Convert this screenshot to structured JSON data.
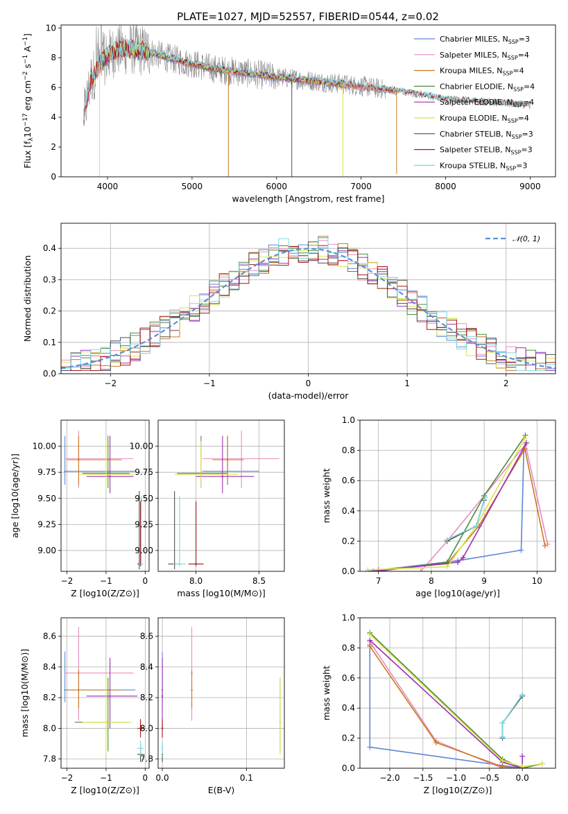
{
  "title": "PLATE=1027, MJD=52557, FIBERID=0544, z=0.02",
  "colors": {
    "Chabrier MILES": "#5b86d6",
    "Salpeter MILES": "#e98bbd",
    "Kroupa MILES": "#c9781f",
    "Chabrier ELODIE": "#4a8a3c",
    "Salpeter ELODIE": "#9b2fb0",
    "Kroupa ELODIE": "#d9e34d",
    "Chabrier STELIB": "#4d4d4d",
    "Salpeter STELIB": "#a01616",
    "Kroupa STELIB": "#7fd7e0",
    "normal": "#5b8fd8",
    "accent_orange": "#e87a2e",
    "accent_lime": "#b6e65a"
  },
  "chart_data": [
    {
      "id": "spectrum",
      "type": "line",
      "xlabel": "wavelength [Angstrom, rest frame]",
      "ylabel_parts": [
        "Flux [f",
        "λ",
        "10",
        "−17",
        " erg cm",
        "−2",
        " s",
        "−1",
        " A",
        "−1",
        "]"
      ],
      "xlim": [
        3450,
        9300
      ],
      "ylim": [
        0,
        10.2
      ],
      "xticks": [
        4000,
        5000,
        6000,
        7000,
        8000,
        9000
      ],
      "yticks": [
        0,
        2,
        4,
        6,
        8,
        10
      ],
      "legend_position": "top-right",
      "legend": [
        {
          "name": "Chabrier MILES",
          "nssp": "3"
        },
        {
          "name": "Salpeter MILES",
          "nssp": "4"
        },
        {
          "name": "Kroupa MILES",
          "nssp": "4"
        },
        {
          "name": "Chabrier ELODIE",
          "nssp": "4"
        },
        {
          "name": "Salpeter ELODIE",
          "nssp": "4"
        },
        {
          "name": "Kroupa ELODIE",
          "nssp": "4"
        },
        {
          "name": "Chabrier STELIB",
          "nssp": "3"
        },
        {
          "name": "Salpeter STELIB",
          "nssp": "3"
        },
        {
          "name": "Kroupa STELIB",
          "nssp": "3"
        }
      ],
      "nssp_label": "N",
      "nssp_sub": "SSP",
      "continuum": {
        "x": [
          3720,
          3800,
          3900,
          4000,
          4100,
          4300,
          4500,
          4700,
          5000,
          5300,
          5600,
          6000,
          6500,
          7000,
          7500,
          8000,
          8500,
          9000
        ],
        "y": [
          4.0,
          6.5,
          7.5,
          8.1,
          8.5,
          8.6,
          8.4,
          8.0,
          7.6,
          7.2,
          7.0,
          6.7,
          6.4,
          6.1,
          5.7,
          5.2,
          5.0,
          4.8
        ]
      },
      "drops": [
        {
          "x": 3905,
          "series": "Kroupa ELODIE",
          "to": 0
        },
        {
          "x": 5430,
          "series": "Kroupa MILES",
          "to": 0
        },
        {
          "x": 6180,
          "series": "Chabrier STELIB",
          "to": 0
        },
        {
          "x": 6785,
          "series": "Kroupa ELODIE",
          "to": 0
        },
        {
          "x": 7420,
          "series": "Kroupa MILES",
          "to": 0.2
        }
      ]
    },
    {
      "id": "residuals",
      "type": "histogram",
      "xlabel": "(data-model)/error",
      "ylabel": "Normed distribution",
      "xlim": [
        -2.5,
        2.5
      ],
      "ylim": [
        0,
        0.48
      ],
      "xticks": [
        -2,
        -1,
        0,
        1,
        2
      ],
      "yticks": [
        0.0,
        0.1,
        0.2,
        0.3,
        0.4
      ],
      "bin_width": 0.1,
      "legend_position": "top-right",
      "normal_label": "𝒩(0, 1)"
    },
    {
      "id": "age_vs_Z",
      "type": "scatter",
      "xlabel": "Z [log10(Z/Z⊙)]",
      "ylabel": "age [log10(age/yr)]",
      "xlim": [
        -2.15,
        0.1
      ],
      "ylim": [
        8.8,
        10.25
      ],
      "xticks": [
        -2,
        -1,
        0
      ],
      "yticks": [
        9.0,
        9.25,
        9.5,
        9.75,
        10.0
      ],
      "points": [
        {
          "s": "Chabrier MILES",
          "x": -2.05,
          "y": 9.76,
          "xe": [
            -2.05,
            -0.25
          ],
          "ye": [
            9.63,
            10.1
          ]
        },
        {
          "s": "Salpeter MILES",
          "x": -1.7,
          "y": 9.88,
          "xe": [
            -2.05,
            -0.3
          ],
          "ye": [
            9.6,
            10.15
          ]
        },
        {
          "s": "Kroupa MILES",
          "x": -1.7,
          "y": 9.87,
          "xe": [
            -2.0,
            -0.6
          ],
          "ye": [
            9.63,
            10.1
          ]
        },
        {
          "s": "Chabrier ELODIE",
          "x": -0.95,
          "y": 9.74,
          "xe": [
            -1.6,
            -0.4
          ],
          "ye": [
            9.6,
            10.1
          ]
        },
        {
          "s": "Salpeter ELODIE",
          "x": -0.9,
          "y": 9.71,
          "xe": [
            -1.5,
            -0.3
          ],
          "ye": [
            9.55,
            10.1
          ]
        },
        {
          "s": "Kroupa ELODIE",
          "x": -1.0,
          "y": 9.73,
          "xe": [
            -1.7,
            -0.3
          ],
          "ye": [
            9.6,
            10.05
          ]
        },
        {
          "s": "Chabrier STELIB",
          "x": -0.15,
          "y": 8.87,
          "xe": [
            -0.2,
            -0.1
          ],
          "ye": [
            8.82,
            9.57
          ]
        },
        {
          "s": "Salpeter STELIB",
          "x": -0.12,
          "y": 8.87,
          "xe": [
            -0.18,
            -0.06
          ],
          "ye": [
            8.85,
            9.47
          ]
        },
        {
          "s": "Kroupa STELIB",
          "x": -0.1,
          "y": 8.87,
          "xe": [
            -0.16,
            -0.05
          ],
          "ye": [
            8.85,
            9.52
          ]
        }
      ]
    },
    {
      "id": "age_vs_mass",
      "type": "scatter",
      "xlabel": "mass [log10(M/M⊙)]",
      "ylabel": "",
      "xlim": [
        7.7,
        8.7
      ],
      "ylim": [
        8.8,
        10.25
      ],
      "xticks": [
        8.0,
        8.5
      ],
      "yticks": [
        9.0,
        9.25,
        9.5,
        9.75,
        10.0
      ],
      "points": [
        {
          "s": "Chabrier MILES",
          "x": 8.25,
          "y": 9.76,
          "xe": [
            8.05,
            8.5
          ],
          "ye": [
            9.63,
            10.1
          ]
        },
        {
          "s": "Salpeter MILES",
          "x": 8.36,
          "y": 9.88,
          "xe": [
            8.05,
            8.66
          ],
          "ye": [
            9.6,
            10.15
          ]
        },
        {
          "s": "Kroupa MILES",
          "x": 8.25,
          "y": 9.87,
          "xe": [
            8.13,
            8.38
          ],
          "ye": [
            9.63,
            10.1
          ]
        },
        {
          "s": "Chabrier ELODIE",
          "x": 8.04,
          "y": 9.74,
          "xe": [
            7.85,
            8.25
          ],
          "ye": [
            9.6,
            10.1
          ]
        },
        {
          "s": "Salpeter ELODIE",
          "x": 8.21,
          "y": 9.71,
          "xe": [
            8.0,
            8.46
          ],
          "ye": [
            9.55,
            10.1
          ]
        },
        {
          "s": "Kroupa ELODIE",
          "x": 8.04,
          "y": 9.73,
          "xe": [
            7.83,
            8.33
          ],
          "ye": [
            9.6,
            10.05
          ]
        },
        {
          "s": "Chabrier STELIB",
          "x": 7.83,
          "y": 8.87,
          "xe": [
            7.78,
            7.88
          ],
          "ye": [
            8.82,
            9.57
          ]
        },
        {
          "s": "Salpeter STELIB",
          "x": 8.0,
          "y": 8.87,
          "xe": [
            7.94,
            8.06
          ],
          "ye": [
            8.85,
            9.47
          ]
        },
        {
          "s": "Kroupa STELIB",
          "x": 7.87,
          "y": 8.87,
          "xe": [
            7.82,
            7.92
          ],
          "ye": [
            8.85,
            9.52
          ]
        }
      ]
    },
    {
      "id": "weight_vs_age",
      "type": "line",
      "xlabel": "age [log10(age/yr)]",
      "ylabel": "mass weight",
      "xlim": [
        6.65,
        10.35
      ],
      "ylim": [
        0.0,
        1.0
      ],
      "xticks": [
        7,
        8,
        9,
        10
      ],
      "yticks": [
        0.0,
        0.2,
        0.4,
        0.6,
        0.8,
        1.0
      ],
      "series": [
        {
          "s": "Chabrier MILES",
          "x": [
            6.8,
            8.5,
            9.7,
            9.75
          ],
          "y": [
            0.0,
            0.07,
            0.14,
            0.8
          ]
        },
        {
          "s": "Salpeter MILES",
          "x": [
            7.8,
            8.3,
            9.0,
            9.78,
            10.2
          ],
          "y": [
            0.0,
            0.2,
            0.5,
            0.84,
            0.18
          ]
        },
        {
          "s": "Kroupa MILES",
          "x": [
            7.0,
            8.3,
            8.9,
            9.77,
            10.15
          ],
          "y": [
            0.01,
            0.05,
            0.3,
            0.81,
            0.17
          ]
        },
        {
          "s": "Chabrier ELODIE",
          "x": [
            7.0,
            8.3,
            9.0,
            9.78
          ],
          "y": [
            0.0,
            0.06,
            0.5,
            0.9
          ]
        },
        {
          "s": "Salpeter ELODIE",
          "x": [
            6.9,
            8.5,
            8.6,
            9.8
          ],
          "y": [
            0.0,
            0.06,
            0.09,
            0.85
          ]
        },
        {
          "s": "Kroupa ELODIE",
          "x": [
            6.8,
            8.3,
            8.85,
            9.77
          ],
          "y": [
            0.01,
            0.03,
            0.3,
            0.88
          ]
        },
        {
          "s": "Chabrier STELIB",
          "x": [
            8.3,
            8.85,
            9.0
          ],
          "y": [
            0.2,
            0.3,
            0.47
          ]
        },
        {
          "s": "Kroupa STELIB",
          "x": [
            8.3,
            8.85,
            9.02
          ],
          "y": [
            0.21,
            0.3,
            0.49
          ]
        }
      ]
    },
    {
      "id": "mass_vs_Z",
      "type": "scatter",
      "xlabel": "Z [log10(Z/Z⊙)]",
      "ylabel": "mass [log10(M/M⊙)]",
      "xlim": [
        -2.15,
        0.1
      ],
      "ylim": [
        7.74,
        8.72
      ],
      "xticks": [
        -2,
        -1,
        0
      ],
      "yticks": [
        7.8,
        8.0,
        8.2,
        8.4,
        8.6
      ],
      "points": [
        {
          "s": "Chabrier MILES",
          "x": -2.05,
          "y": 8.25,
          "xe": [
            -2.05,
            -0.25
          ],
          "ye": [
            8.17,
            8.5
          ]
        },
        {
          "s": "Salpeter MILES",
          "x": -1.7,
          "y": 8.36,
          "xe": [
            -2.05,
            -0.3
          ],
          "ye": [
            8.05,
            8.66
          ]
        },
        {
          "s": "Kroupa MILES",
          "x": -1.7,
          "y": 8.25,
          "xe": [
            -2.0,
            -0.6
          ],
          "ye": [
            8.13,
            8.38
          ]
        },
        {
          "s": "Chabrier ELODIE",
          "x": -0.95,
          "y": 8.04,
          "xe": [
            -1.8,
            -0.4
          ],
          "ye": [
            7.85,
            8.33
          ]
        },
        {
          "s": "Salpeter ELODIE",
          "x": -0.9,
          "y": 8.21,
          "xe": [
            -1.5,
            -0.2
          ],
          "ye": [
            8.0,
            8.46
          ]
        },
        {
          "s": "Kroupa ELODIE",
          "x": -1.0,
          "y": 8.04,
          "xe": [
            -1.6,
            -0.35
          ],
          "ye": [
            7.83,
            8.33
          ]
        },
        {
          "s": "Chabrier STELIB",
          "x": -0.12,
          "y": 7.83,
          "xe": [
            -0.2,
            -0.02
          ],
          "ye": [
            7.78,
            7.9
          ]
        },
        {
          "s": "Salpeter STELIB",
          "x": -0.12,
          "y": 8.0,
          "xe": [
            -0.2,
            -0.03
          ],
          "ye": [
            7.94,
            8.06
          ]
        },
        {
          "s": "Kroupa STELIB",
          "x": -0.12,
          "y": 7.87,
          "xe": [
            -0.2,
            -0.04
          ],
          "ye": [
            7.82,
            7.92
          ]
        }
      ]
    },
    {
      "id": "mass_vs_ebv",
      "type": "scatter",
      "xlabel": "E(B-V)",
      "ylabel": "",
      "xlim": [
        -0.005,
        0.145
      ],
      "ylim": [
        7.74,
        8.72
      ],
      "xticks": [
        0.0,
        0.1
      ],
      "yticks": [
        7.8,
        8.0,
        8.2,
        8.4,
        8.6
      ],
      "points": [
        {
          "s": "Chabrier MILES",
          "x": 0.0,
          "y": 8.25,
          "ye": [
            8.17,
            8.5
          ]
        },
        {
          "s": "Salpeter MILES",
          "x": 0.035,
          "y": 8.36,
          "ye": [
            8.05,
            8.66
          ]
        },
        {
          "s": "Kroupa MILES",
          "x": 0.035,
          "y": 8.25,
          "ye": [
            8.13,
            8.38
          ]
        },
        {
          "s": "Chabrier ELODIE",
          "x": 0.14,
          "y": 8.04,
          "ye": [
            7.85,
            8.33
          ]
        },
        {
          "s": "Salpeter ELODIE",
          "x": 0.0,
          "y": 8.21,
          "ye": [
            8.0,
            8.46
          ]
        },
        {
          "s": "Kroupa ELODIE",
          "x": 0.14,
          "y": 8.04,
          "ye": [
            7.83,
            8.33
          ]
        },
        {
          "s": "Chabrier STELIB",
          "x": 0.0,
          "y": 7.83,
          "ye": [
            7.78,
            7.9
          ]
        },
        {
          "s": "Salpeter STELIB",
          "x": 0.0,
          "y": 8.0,
          "ye": [
            7.94,
            8.06
          ]
        },
        {
          "s": "Kroupa STELIB",
          "x": 0.0,
          "y": 7.87,
          "ye": [
            7.82,
            7.92
          ]
        }
      ]
    },
    {
      "id": "weight_vs_Z",
      "type": "line",
      "xlabel": "Z [log10(Z/Z⊙)]",
      "ylabel": "mass weight",
      "xlim": [
        -2.45,
        0.5
      ],
      "ylim": [
        0.0,
        1.0
      ],
      "xticks": [
        -2.0,
        -1.5,
        -1.0,
        -0.5,
        0.0
      ],
      "yticks": [
        0.0,
        0.2,
        0.4,
        0.6,
        0.8,
        1.0
      ],
      "series": [
        {
          "s": "Chabrier MILES",
          "x": [
            -2.3,
            -2.3,
            0.0
          ],
          "y": [
            0.82,
            0.14,
            0.0
          ]
        },
        {
          "s": "Salpeter MILES",
          "x": [
            -2.3,
            -1.3,
            -0.3,
            0.0
          ],
          "y": [
            0.84,
            0.18,
            0.0,
            0.0
          ]
        },
        {
          "s": "Kroupa MILES",
          "x": [
            -2.3,
            -1.3,
            -0.3,
            0.0
          ],
          "y": [
            0.81,
            0.17,
            0.01,
            0.0
          ]
        },
        {
          "s": "Chabrier ELODIE",
          "x": [
            -2.3,
            -0.3,
            0.0,
            0.3
          ],
          "y": [
            0.9,
            0.06,
            0.0,
            0.03
          ]
        },
        {
          "s": "Salpeter ELODIE",
          "x": [
            -2.3,
            -0.3,
            0.0,
            0.0
          ],
          "y": [
            0.85,
            0.04,
            0.0,
            0.08
          ]
        },
        {
          "s": "Kroupa ELODIE",
          "x": [
            -2.3,
            -0.3,
            0.0,
            0.3
          ],
          "y": [
            0.89,
            0.05,
            0.01,
            0.03
          ]
        },
        {
          "s": "Chabrier STELIB",
          "x": [
            -0.3,
            -0.3,
            0.0
          ],
          "y": [
            0.2,
            0.3,
            0.48
          ]
        },
        {
          "s": "Kroupa STELIB",
          "x": [
            -0.3,
            -0.3,
            0.0
          ],
          "y": [
            0.21,
            0.3,
            0.49
          ]
        }
      ]
    }
  ]
}
